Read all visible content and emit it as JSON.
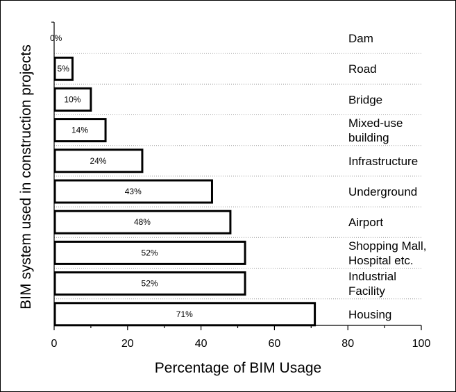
{
  "chart_data": {
    "type": "bar",
    "orientation": "horizontal",
    "title": "",
    "xlabel": "Percentage of BIM Usage",
    "ylabel": "BIM system used in construction projects",
    "xlim": [
      0,
      100
    ],
    "xticks": [
      0,
      20,
      40,
      60,
      80,
      100
    ],
    "grid": "dotted horizontal",
    "legend": "none",
    "bar_fill": "#ffffff",
    "bar_stroke": "#000000",
    "categories": [
      [
        "Dam"
      ],
      [
        "Road"
      ],
      [
        "Bridge"
      ],
      [
        "Mixed-use",
        "building"
      ],
      [
        "Infrastructure"
      ],
      [
        "Underground"
      ],
      [
        "Airport"
      ],
      [
        "Shopping Mall,",
        "Hospital etc."
      ],
      [
        "Industrial",
        "Facility"
      ],
      [
        "Housing"
      ]
    ],
    "values": [
      0,
      5,
      10,
      14,
      24,
      43,
      48,
      52,
      52,
      71
    ],
    "value_labels": [
      "0%",
      "5%",
      "10%",
      "14%",
      "24%",
      "43%",
      "48%",
      "52%",
      "52%",
      "71%"
    ]
  }
}
